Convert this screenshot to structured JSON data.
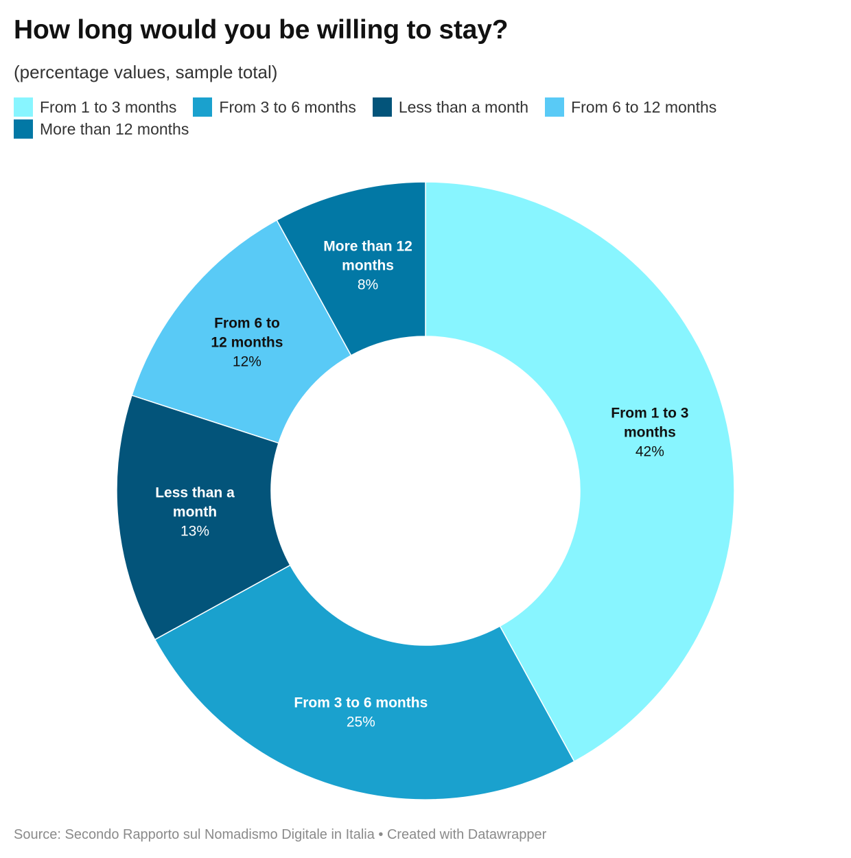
{
  "chart_data": {
    "type": "pie",
    "style": "donut",
    "title": "How long would you be willing to stay?",
    "subtitle": "(percentage values, sample total)",
    "unit": "%",
    "legend": [
      "From 1 to 3 months",
      "From 3 to 6 months",
      "Less than a month",
      "From 6 to 12 months",
      "More than 12 months"
    ],
    "slices": [
      {
        "label": "From 1 to 3 months",
        "label_lines": [
          "From 1 to 3",
          "months"
        ],
        "value": 42,
        "display": "42%",
        "color": "#88F5FF",
        "text_color": "#111111"
      },
      {
        "label": "From 3 to 6 months",
        "label_lines": [
          "From 3 to 6 months"
        ],
        "value": 25,
        "display": "25%",
        "color": "#1AA1CE",
        "text_color": "#ffffff"
      },
      {
        "label": "Less than a month",
        "label_lines": [
          "Less than a",
          "month"
        ],
        "value": 13,
        "display": "13%",
        "color": "#03547A",
        "text_color": "#ffffff"
      },
      {
        "label": "From 6 to 12 months",
        "label_lines": [
          "From 6 to",
          "12 months"
        ],
        "value": 12,
        "display": "12%",
        "color": "#59CAF6",
        "text_color": "#111111"
      },
      {
        "label": "More than 12 months",
        "label_lines": [
          "More than 12",
          "months"
        ],
        "value": 8,
        "display": "8%",
        "color": "#0278A5",
        "text_color": "#ffffff"
      }
    ]
  },
  "footer": {
    "source": "Source: Secondo Rapporto sul Nomadismo Digitale in Italia • Created with Datawrapper"
  }
}
